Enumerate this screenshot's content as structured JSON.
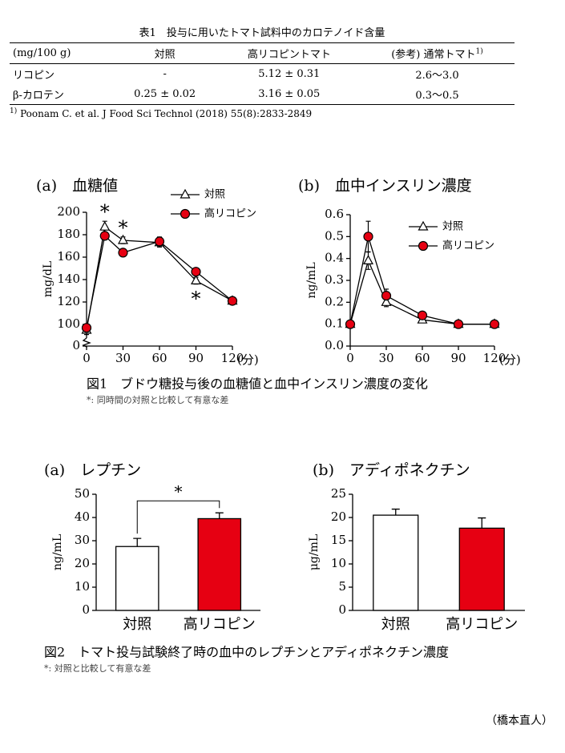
{
  "table": {
    "title": "表1　投与に用いたトマト試料中のカロテノイド含量",
    "header": [
      "(mg/100 g)",
      "対照",
      "高リコピントマト",
      "(参考) 通常トマト"
    ],
    "header_note_mark": "1)",
    "rows": [
      [
        "リコピン",
        "-",
        "5.12 ± 0.31",
        "2.6〜3.0"
      ],
      [
        "β-カロテン",
        "0.25 ± 0.02",
        "3.16 ± 0.05",
        "0.3〜0.5"
      ]
    ],
    "footnote_mark": "1)",
    "footnote": "Poonam C. et al. J Food Sci Technol (2018) 55(8):2833-2849"
  },
  "figure1": {
    "caption": "図1　ブドウ糖投与後の血糖値と血中インスリン濃度の変化",
    "note": "*: 同時間の対照と比較して有意な差"
  },
  "figure2": {
    "caption": "図2　トマト投与試験終了時の血中のレプチンとアディポネクチン濃度",
    "note": "*: 対照と比較して有意な差"
  },
  "author": "（橋本直人）",
  "chart_data": [
    {
      "type": "line",
      "title": "(a)　血糖値",
      "x": [
        0,
        15,
        30,
        60,
        90,
        120
      ],
      "xlim": [
        0,
        120
      ],
      "xticks": [
        0,
        30,
        60,
        90,
        120
      ],
      "x_label": "(分)",
      "y_label": "mg/dL",
      "ylim": [
        0,
        200
      ],
      "ybreak": [
        0,
        90
      ],
      "yticks": [
        0,
        100,
        120,
        140,
        160,
        180,
        200
      ],
      "legend": "upper right",
      "series": [
        {
          "name": "対照",
          "color": "#ffffff",
          "marker": "triangle",
          "values": [
            95,
            187,
            175,
            173,
            139,
            121
          ],
          "errors": [
            4,
            5,
            3,
            4,
            3,
            3
          ]
        },
        {
          "name": "高リコピン",
          "color": "#e60012",
          "marker": "circle",
          "values": [
            97,
            179,
            164,
            174,
            147,
            121
          ],
          "errors": [
            2,
            3,
            2,
            4,
            2,
            3
          ]
        }
      ],
      "annotations": [
        {
          "text": "*",
          "x": 15
        },
        {
          "text": "*",
          "x": 30
        },
        {
          "text": "*",
          "x": 90,
          "side": "below"
        }
      ]
    },
    {
      "type": "line",
      "title": "(b)　血中インスリン濃度",
      "x": [
        0,
        15,
        30,
        60,
        90,
        120
      ],
      "xlim": [
        0,
        120
      ],
      "xticks": [
        0,
        30,
        60,
        90,
        120
      ],
      "x_label": "(分)",
      "y_label": "ng/mL",
      "ylim": [
        0,
        0.6
      ],
      "yticks": [
        {
          "value": 0,
          "label": "0.0"
        },
        0.1,
        0.2,
        0.3,
        0.4,
        0.5,
        0.6
      ],
      "legend": "upper right",
      "series": [
        {
          "name": "対照",
          "color": "#ffffff",
          "marker": "triangle",
          "values": [
            0.1,
            0.39,
            0.2,
            0.12,
            0.1,
            0.1
          ],
          "errors": [
            0.01,
            0.04,
            0.02,
            0.01,
            0.01,
            0.01
          ]
        },
        {
          "name": "高リコピン",
          "color": "#e60012",
          "marker": "circle",
          "values": [
            0.1,
            0.5,
            0.23,
            0.14,
            0.1,
            0.1
          ],
          "errors": [
            0.01,
            0.07,
            0.03,
            0.01,
            0.01,
            0.01
          ]
        }
      ]
    },
    {
      "type": "bar",
      "title": "(a)　レプチン",
      "categories": [
        "対照",
        "高リコピン"
      ],
      "values": [
        27.5,
        39.5
      ],
      "errors": [
        3.5,
        2.5
      ],
      "colors": [
        "#ffffff",
        "#e60012"
      ],
      "y_label": "ng/mL",
      "ylim": [
        0,
        50
      ],
      "yticks": [
        0,
        10,
        20,
        30,
        40,
        50
      ],
      "annotations": [
        {
          "text": "*",
          "between": [
            0,
            1
          ]
        }
      ]
    },
    {
      "type": "bar",
      "title": "(b)　アディポネクチン",
      "categories": [
        "対照",
        "高リコピン"
      ],
      "values": [
        20.5,
        17.7
      ],
      "errors": [
        1.3,
        2.2
      ],
      "colors": [
        "#ffffff",
        "#e60012"
      ],
      "y_label": "μg/mL",
      "ylim": [
        0,
        25
      ],
      "yticks": [
        0,
        5,
        10,
        15,
        20,
        25
      ]
    }
  ]
}
